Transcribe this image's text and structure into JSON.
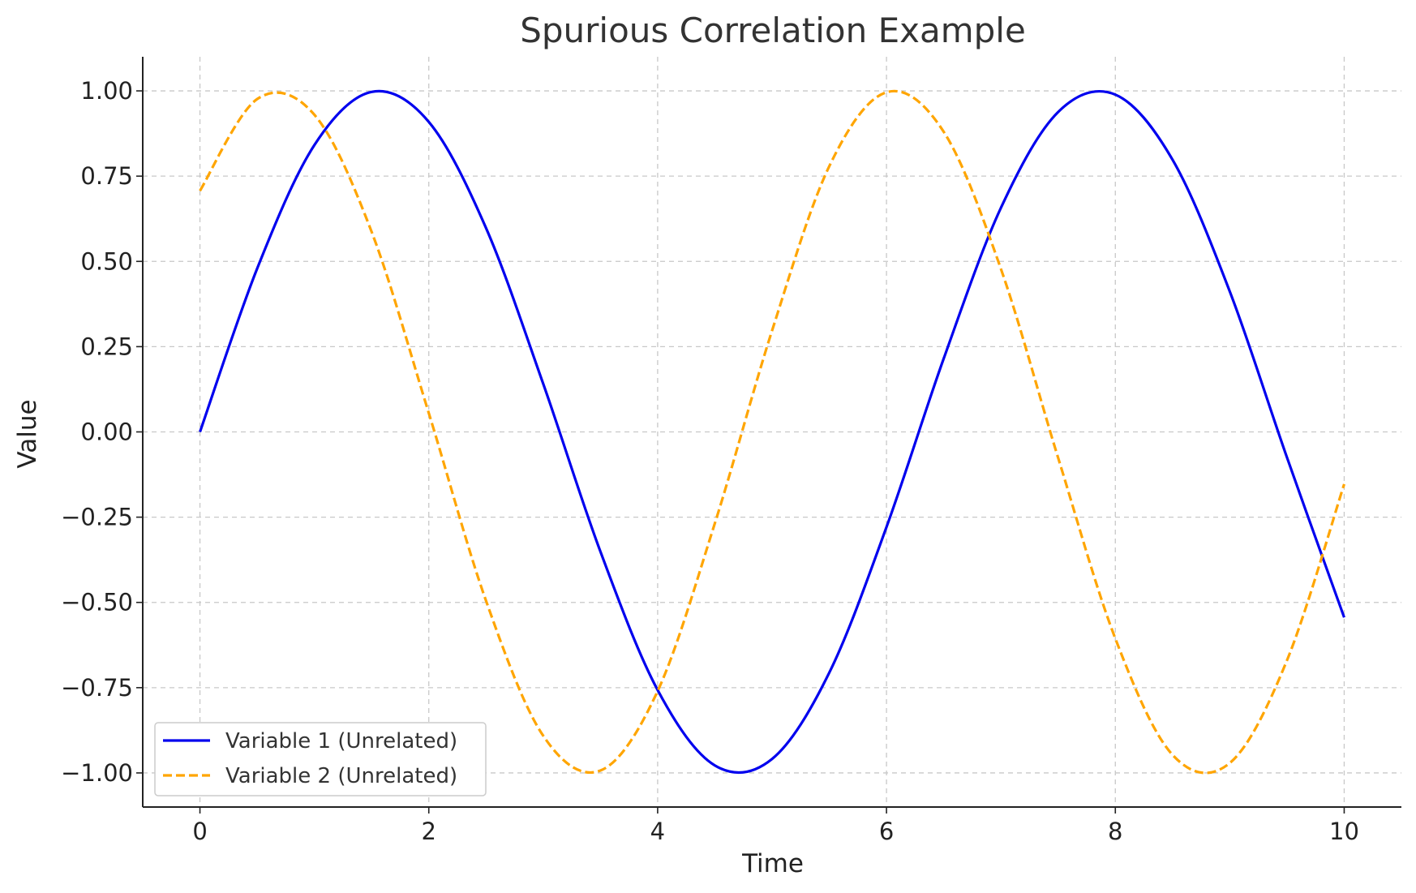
{
  "chart_data": {
    "type": "line",
    "title": "Spurious Correlation Example",
    "xlabel": "Time",
    "ylabel": "Value",
    "xlim": [
      -0.5,
      10.5
    ],
    "ylim": [
      -1.1,
      1.1
    ],
    "xticks": [
      0,
      2,
      4,
      6,
      8,
      10
    ],
    "xtick_labels": [
      "0",
      "2",
      "4",
      "6",
      "8",
      "10"
    ],
    "yticks": [
      1.0,
      0.75,
      0.5,
      0.25,
      0.0,
      -0.25,
      -0.5,
      -0.75,
      -1.0
    ],
    "ytick_labels": [
      "1.00",
      "0.75",
      "0.50",
      "0.25",
      "0.00",
      "−0.25",
      "−0.50",
      "−0.75",
      "−1.00"
    ],
    "grid": true,
    "legend_position": "lower-left",
    "x": [
      0,
      0.5,
      1,
      1.5,
      2,
      2.5,
      3,
      3.5,
      4,
      4.5,
      5,
      5.5,
      6,
      6.5,
      7,
      7.5,
      8,
      8.5,
      9,
      9.5,
      10
    ],
    "series": [
      {
        "name": "Variable 1 (Unrelated)",
        "color": "#0000ee",
        "style": "solid",
        "values": [
          0.0,
          0.479,
          0.841,
          0.997,
          0.909,
          0.598,
          0.141,
          -0.351,
          -0.757,
          -0.978,
          -0.959,
          -0.706,
          -0.279,
          0.215,
          0.657,
          0.938,
          0.989,
          0.798,
          0.412,
          -0.075,
          -0.544
        ]
      },
      {
        "name": "Variable 2 (Unrelated)",
        "color": "#ffa500",
        "style": "dashed",
        "values": [
          0.707,
          0.976,
          0.93,
          0.587,
          0.055,
          -0.495,
          -0.891,
          -0.993,
          -0.76,
          -0.268,
          0.297,
          0.779,
          0.996,
          0.88,
          0.478,
          -0.076,
          -0.606,
          -0.947,
          -0.971,
          -0.67,
          -0.153
        ]
      }
    ]
  }
}
